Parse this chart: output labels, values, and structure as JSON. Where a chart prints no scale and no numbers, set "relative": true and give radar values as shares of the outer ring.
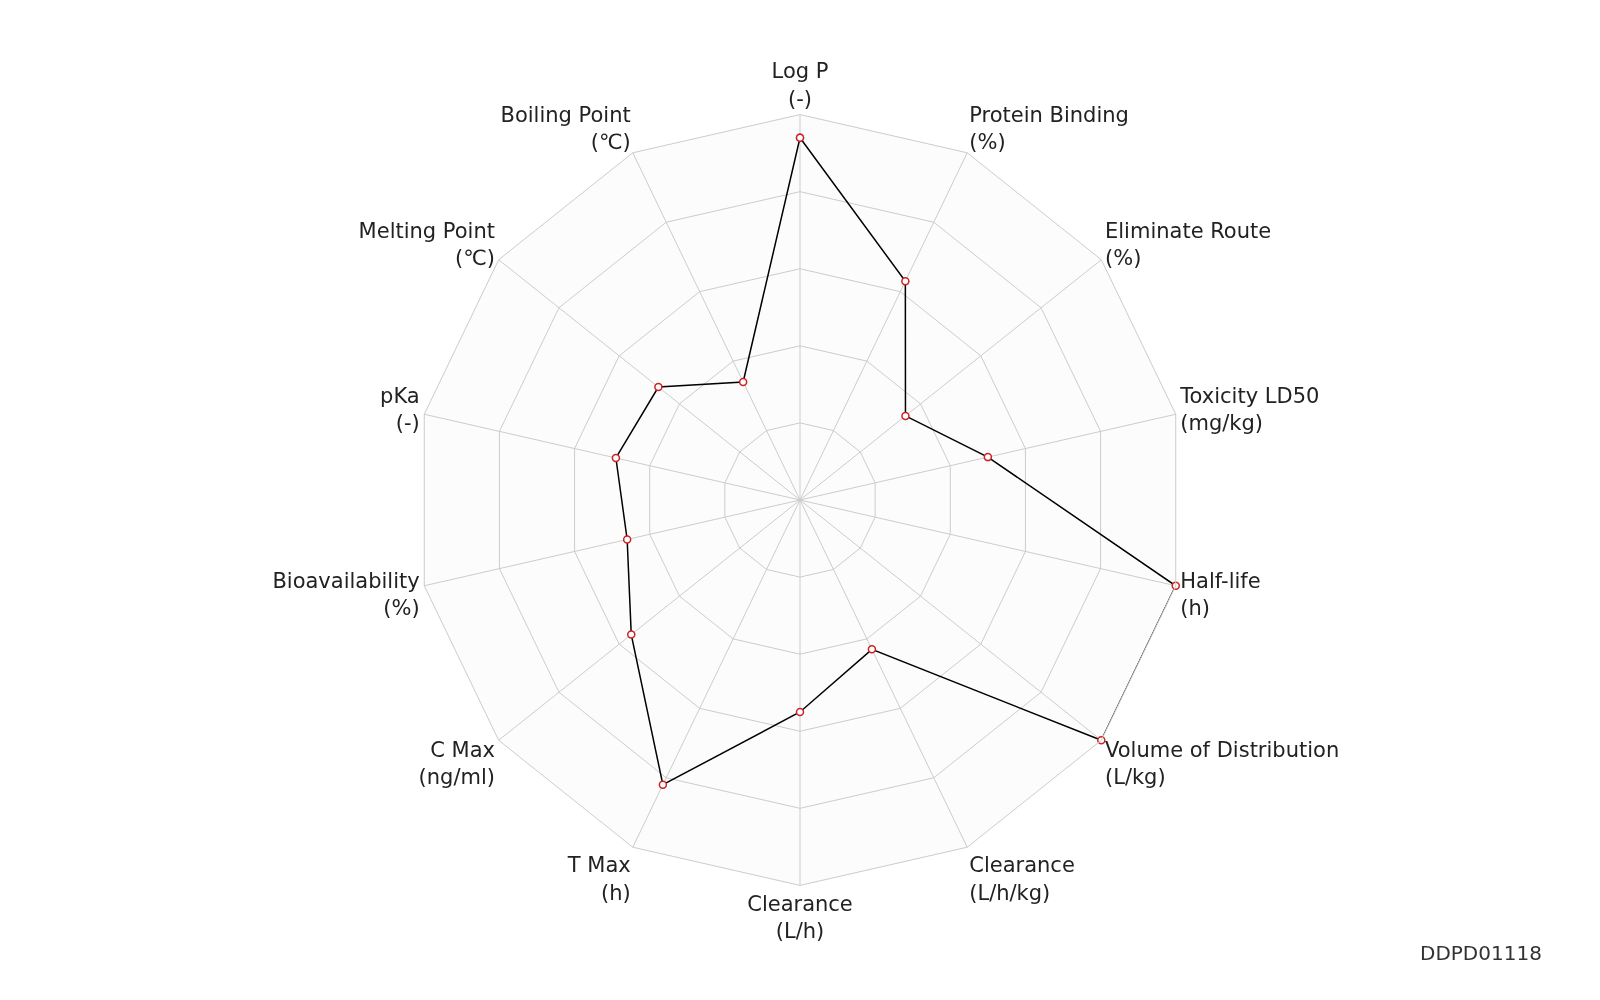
{
  "chart_data": {
    "type": "radar",
    "relative": true,
    "grid": true,
    "marker": "circle",
    "line_style": "solid",
    "categories": [
      "Log P\n(-)",
      "Protein Binding\n(%)",
      "Eliminate Route\n(%)",
      "Toxicity LD50\n(mg/kg)",
      "Half-life\n(h)",
      "Volume of Distribution\n(L/kg)",
      "Clearance\n(L/h/kg)",
      "Clearance\n(L/h)",
      "T Max\n(h)",
      "C Max\n(ng/ml)",
      "Bioavailability\n(%)",
      "pKa\n(-)",
      "Melting Point\n(℃)",
      "Boiling Point\n(℃)"
    ],
    "series": [
      {
        "color": "#000000",
        "values": [
          0.94,
          0.63,
          0.35,
          0.5,
          1.0,
          1.0,
          0.43,
          0.55,
          0.82,
          0.56,
          0.46,
          0.49,
          0.47,
          0.34
        ]
      }
    ],
    "annotations": [
      "DDPD01118"
    ]
  }
}
